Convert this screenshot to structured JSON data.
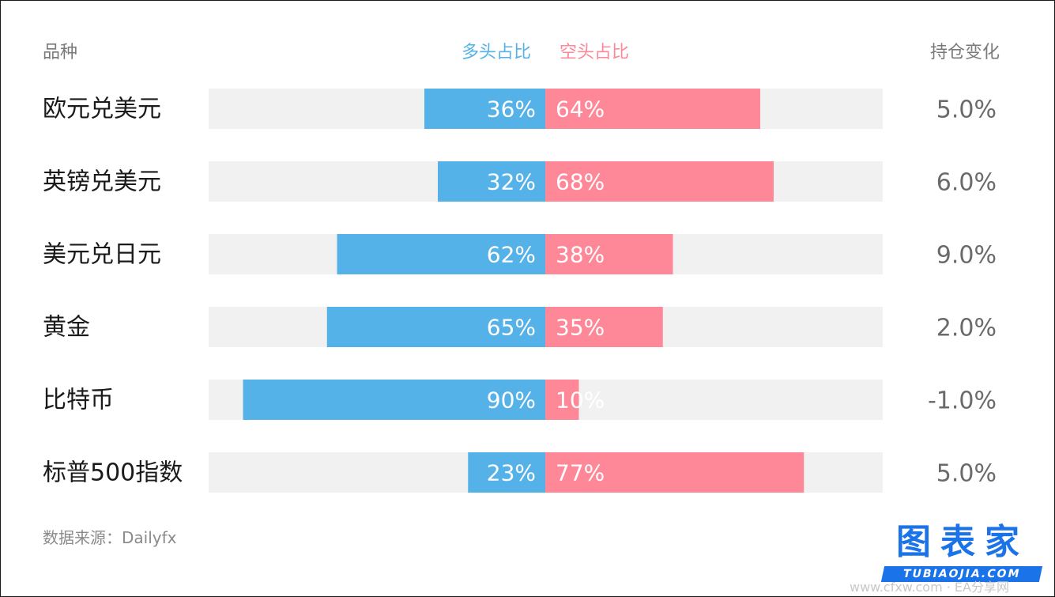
{
  "header": {
    "category": "品种",
    "long": "多头占比",
    "short": "空头占比",
    "change": "持仓变化"
  },
  "colors": {
    "long": "#55b2e8",
    "short": "#ff8898",
    "track": "#f1f1f1"
  },
  "chart_data": {
    "type": "bar",
    "orientation": "horizontal-diverging",
    "categories": [
      "欧元兑美元",
      "英镑兑美元",
      "美元兑日元",
      "黄金",
      "比特币",
      "标普500指数"
    ],
    "series": [
      {
        "name": "多头占比",
        "values": [
          36,
          32,
          62,
          65,
          90,
          23
        ],
        "labels": [
          "36%",
          "32%",
          "62%",
          "65%",
          "90%",
          "23%"
        ]
      },
      {
        "name": "空头占比",
        "values": [
          64,
          68,
          38,
          35,
          10,
          77
        ],
        "labels": [
          "64%",
          "68%",
          "38%",
          "35%",
          "10%",
          "77%"
        ]
      }
    ],
    "change": {
      "values": [
        5.0,
        6.0,
        9.0,
        2.0,
        -1.0,
        5.0
      ],
      "labels": [
        "5.0%",
        "6.0%",
        "9.0%",
        "2.0%",
        "-1.0%",
        "5.0%"
      ]
    },
    "xlim": [
      0,
      100
    ]
  },
  "source": "数据来源：Dailyfx",
  "logo": {
    "main": "图表家",
    "sub": "TUBIAOJIA.COM"
  },
  "watermark": "www.cfxw.com · EA分享网"
}
